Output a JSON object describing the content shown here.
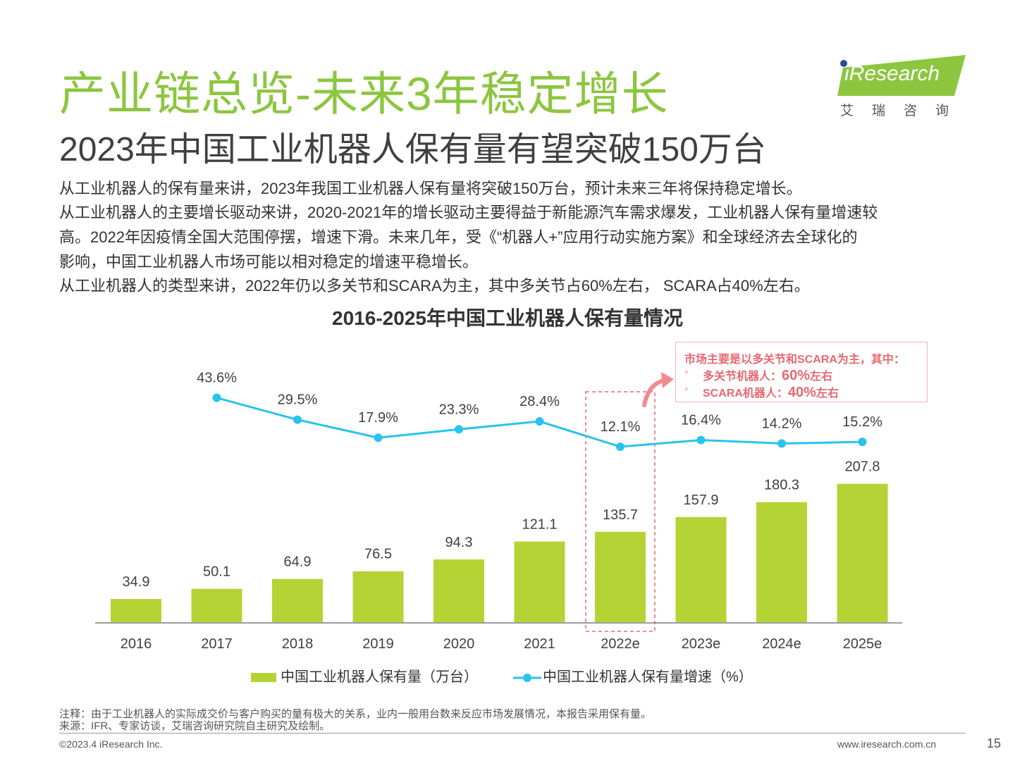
{
  "header": {
    "title": "产业链总览-未来3年稳定增长",
    "subtitle": "2023年中国工业机器人保有量有望突破150万台",
    "logo_text": "iResearch",
    "logo_cn": "艾瑞咨询",
    "logo_color": "#8cc63f"
  },
  "body": {
    "paragraphs": [
      "从工业机器人的保有量来讲，2023年我国工业机器人保有量将突破150万台，预计未来三年将保持稳定增长。",
      "从工业机器人的主要增长驱动来讲，2020-2021年的增长驱动主要得益于新能源汽车需求爆发，工业机器人保有量增速较",
      "高。2022年因疫情全国大范围停摆，增速下滑。未来几年，受《“机器人+”应用行动实施方案》和全球经济去全球化的",
      "影响，中国工业机器人市场可能以相对稳定的增速平稳增长。",
      "从工业机器人的类型来讲，2022年仍以多关节和SCARA为主，其中多关节占60%左右， SCARA占40%左右。"
    ]
  },
  "callout": {
    "heading": "市场主要是以多关节和SCARA为主，其中：",
    "item1_label": "多关节机器人：",
    "item1_value": "60%",
    "item1_suffix": "左右",
    "item2_label": "SCARA机器人：",
    "item2_value": "40%",
    "item2_suffix": "左右",
    "bullet": "◦",
    "color": "#e8686f"
  },
  "chart_data": {
    "type": "bar",
    "title": "2016-2025年中国工业机器人保有量情况",
    "categories": [
      "2016",
      "2017",
      "2018",
      "2019",
      "2020",
      "2021",
      "2022e",
      "2023e",
      "2024e",
      "2025e"
    ],
    "series": [
      {
        "name": "中国工业机器人保有量（万台）",
        "type": "bar",
        "color": "#b5d334",
        "values": [
          34.9,
          50.1,
          64.9,
          76.5,
          94.3,
          121.1,
          135.7,
          157.9,
          180.3,
          207.8
        ],
        "labels": [
          "34.9",
          "50.1",
          "64.9",
          "76.5",
          "94.3",
          "121.1",
          "135.7",
          "157.9",
          "180.3",
          "207.8"
        ]
      },
      {
        "name": "中国工业机器人保有量增速（%）",
        "type": "line",
        "color": "#29c3ec",
        "values": [
          null,
          43.6,
          29.5,
          17.9,
          23.3,
          28.4,
          12.1,
          16.4,
          14.2,
          15.2
        ],
        "labels": [
          "",
          "43.6%",
          "29.5%",
          "17.9%",
          "23.3%",
          "28.4%",
          "12.1%",
          "16.4%",
          "14.2%",
          "15.2%"
        ]
      }
    ],
    "highlight_category": "2022e",
    "highlight_color": "#e8686f",
    "legend_position": "bottom"
  },
  "footer": {
    "note": "注释：由于工业机器人的实际成交价与客户购买的量有极大的关系，业内一般用台数来反应市场发展情况，本报告采用保有量。",
    "source": "来源：IFR、专家访谈，艾瑞咨询研究院自主研究及绘制。",
    "copyright": "©2023.4 iResearch Inc.",
    "website": "www.iresearch.com.cn",
    "page": "15"
  }
}
